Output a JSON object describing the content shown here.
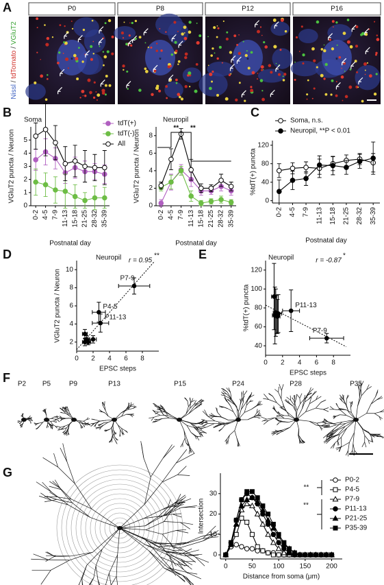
{
  "panels": [
    "A",
    "B",
    "C",
    "D",
    "E",
    "F",
    "G"
  ],
  "images": {
    "labels": [
      "P0",
      "P8",
      "P12",
      "P16"
    ],
    "asterisk": "*",
    "stain_labels": [
      {
        "text": "Nissl",
        "color": "#3b5fc0"
      },
      {
        "text": " / ",
        "color": "#333333"
      },
      {
        "text": "tdTomato",
        "color": "#d0302a"
      },
      {
        "text": " / ",
        "color": "#333333"
      },
      {
        "text": "VGluT2",
        "color": "#3aa335"
      }
    ]
  },
  "neurons": {
    "labels": [
      "P2",
      "P5",
      "P9",
      "P13",
      "P15",
      "P24",
      "P28",
      "P35"
    ]
  },
  "chart_data": [
    {
      "type": "line",
      "title": "Soma",
      "ylabel": "VGluT2 puncta / Neuron",
      "xlabel": "Postnatal day",
      "categories": [
        "0-2",
        "4-5",
        "7-9",
        "11-13",
        "15-18",
        "21-25",
        "28-32",
        "35-39"
      ],
      "ylim": [
        0,
        6
      ],
      "yticks": [
        0,
        1,
        2,
        3,
        4,
        5
      ],
      "legend": "upper right",
      "series": [
        {
          "name": "tdT(+)",
          "color": "#b05fc0",
          "marker": "circle",
          "filled": true,
          "values": [
            3.5,
            4.1,
            3.6,
            2.5,
            2.9,
            2.6,
            2.6,
            2.4
          ],
          "errors": [
            0.8,
            1.0,
            0.8,
            0.8,
            0.8,
            0.8,
            0.6,
            0.7
          ]
        },
        {
          "name": "tdT(-)",
          "color": "#6dbd45",
          "marker": "circle",
          "filled": true,
          "values": [
            1.8,
            1.6,
            1.2,
            1.1,
            0.7,
            0.4,
            0.6,
            0.6
          ],
          "errors": [
            1.0,
            0.9,
            1.0,
            1.3,
            0.9,
            0.6,
            0.9,
            0.8
          ]
        },
        {
          "name": "All",
          "color": "#000000",
          "marker": "circle",
          "filled": false,
          "values": [
            5.3,
            5.8,
            4.8,
            3.2,
            3.4,
            3.0,
            2.9,
            2.9
          ],
          "errors": [
            1.0,
            2.0,
            1.3,
            1.3,
            1.2,
            1.2,
            1.0,
            1.3
          ]
        }
      ]
    },
    {
      "type": "line",
      "title": "Neuropil",
      "ylabel": "VGluT2 puncta / Neuron",
      "xlabel": "Postnatal day",
      "categories": [
        "0-2",
        "4-5",
        "7-9",
        "11-13",
        "15-18",
        "21-25",
        "28-32",
        "35-39"
      ],
      "ylim": [
        0,
        9
      ],
      "yticks": [
        0,
        2,
        4,
        6,
        8
      ],
      "annotations": [
        "**",
        "**"
      ],
      "series": [
        {
          "color": "#b05fc0",
          "marker": "circle",
          "filled": true,
          "values": [
            0.3,
            2.7,
            4.1,
            3.0,
            1.7,
            1.7,
            2.2,
            1.7
          ],
          "errors": [
            0.4,
            0.9,
            0.6,
            0.8,
            0.5,
            0.4,
            0.5,
            0.5
          ]
        },
        {
          "color": "#6dbd45",
          "marker": "circle",
          "filled": true,
          "values": [
            2.1,
            2.7,
            4.0,
            1.1,
            0.3,
            0.5,
            0.7,
            0.4
          ],
          "errors": [
            0.4,
            0.8,
            0.5,
            0.6,
            0.3,
            0.3,
            0.4,
            0.3
          ]
        },
        {
          "color": "#000000",
          "marker": "circle",
          "filled": false,
          "values": [
            2.3,
            5.3,
            8.2,
            4.1,
            2.0,
            2.0,
            2.9,
            2.2
          ],
          "errors": [
            0.4,
            1.2,
            0.6,
            1.2,
            0.5,
            0.4,
            0.7,
            0.5
          ]
        }
      ]
    },
    {
      "type": "line",
      "ylabel": "%tdT(+) puncta",
      "xlabel": "Postnatal day",
      "categories": [
        "0-2",
        "4-5",
        "7-9",
        "11-13",
        "15-18",
        "21-25",
        "28-32",
        "35-39"
      ],
      "ylim": [
        -5,
        130
      ],
      "yticks": [
        0,
        40,
        80,
        120
      ],
      "legend": "top",
      "series": [
        {
          "name": "Soma, n.s.",
          "color": "#000000",
          "marker": "circle",
          "filled": false,
          "values": [
            65,
            70,
            72,
            70,
            80,
            87,
            90,
            82
          ],
          "errors": [
            15,
            12,
            12,
            20,
            15,
            12,
            12,
            20
          ]
        },
        {
          "name": "Neuropil, **P < 0.01",
          "color": "#000000",
          "marker": "circle",
          "filled": true,
          "values": [
            20,
            44,
            48,
            77,
            76,
            72,
            85,
            92
          ],
          "errors": [
            25,
            20,
            15,
            20,
            20,
            15,
            15,
            35
          ]
        }
      ]
    },
    {
      "type": "scatter",
      "title": "Neuropil",
      "annotations": [
        "r = 0.95",
        "**"
      ],
      "xlabel": "EPSC steps",
      "ylabel": "VGluT2 puncta / Neuron",
      "xlim": [
        0,
        10
      ],
      "xticks": [
        0,
        2,
        4,
        6,
        8
      ],
      "ylim": [
        1,
        11
      ],
      "yticks": [
        2,
        4,
        6,
        8,
        10
      ],
      "trendline": true,
      "x": [
        7.0,
        2.7,
        2.9,
        1.0,
        1.2,
        1.4,
        2.0,
        1.0
      ],
      "y": [
        8.2,
        5.3,
        4.1,
        2.9,
        2.3,
        2.0,
        2.3,
        2.0
      ],
      "xerr": [
        1.9,
        0.8,
        1.0,
        0.3,
        0.3,
        0.3,
        0.4,
        0.3
      ],
      "yerr": [
        0.9,
        1.1,
        1.0,
        0.5,
        0.4,
        0.3,
        0.4,
        0.4
      ],
      "point_labels": [
        "P7-9",
        "P4-5",
        "P11-13",
        null,
        null,
        null,
        null,
        null
      ]
    },
    {
      "type": "scatter",
      "title": "Neuropil",
      "annotations": [
        "r = -0.87",
        "*"
      ],
      "xlabel": "EPSC steps",
      "ylabel": "%tdT(+) puncta",
      "xlim": [
        0,
        10
      ],
      "xticks": [
        0,
        2,
        4,
        6,
        8
      ],
      "ylim": [
        30,
        130
      ],
      "yticks": [
        40,
        60,
        80,
        100,
        120
      ],
      "trendline": true,
      "x": [
        7.2,
        3.0,
        1.0,
        1.2,
        1.3,
        1.1,
        1.5,
        1.4
      ],
      "y": [
        48,
        77,
        92,
        75,
        73,
        72,
        74,
        71
      ],
      "xerr": [
        2.0,
        1.0,
        0.3,
        0.3,
        0.3,
        0.3,
        0.4,
        0.3
      ],
      "yerr": [
        5,
        22,
        35,
        25,
        20,
        30,
        20,
        18
      ],
      "point_labels": [
        "P7-9",
        "P11-13",
        null,
        null,
        null,
        null,
        null,
        null
      ]
    },
    {
      "type": "line",
      "xlabel": "Distance from soma (μm)",
      "ylabel": "Intersection",
      "xlim": [
        -10,
        220
      ],
      "xticks": [
        0,
        50,
        100,
        150,
        200
      ],
      "ylim": [
        -2,
        40
      ],
      "yticks": [
        0,
        10,
        20,
        30
      ],
      "legend": "right",
      "annotations": [
        "**",
        "**"
      ],
      "x": [
        0,
        10,
        20,
        30,
        40,
        50,
        60,
        70,
        80,
        90,
        100,
        110,
        120,
        130,
        140,
        150,
        160,
        170,
        180,
        190,
        200
      ],
      "series": [
        {
          "name": "P0-2",
          "color": "#000000",
          "marker": "circle",
          "filled": false,
          "values": [
            0,
            4,
            5,
            4,
            3,
            3,
            2,
            2,
            1,
            1,
            0,
            0,
            0,
            0,
            0,
            0,
            0,
            0,
            0,
            0,
            0
          ]
        },
        {
          "name": "P4-5",
          "color": "#000000",
          "marker": "square",
          "filled": false,
          "values": [
            0,
            5,
            10,
            18,
            16,
            10,
            4,
            2,
            1,
            0,
            0,
            0,
            0,
            0,
            0,
            0,
            0,
            0,
            0,
            0,
            0
          ]
        },
        {
          "name": "P7-9",
          "color": "#000000",
          "marker": "triangle",
          "filled": false,
          "values": [
            0,
            5,
            15,
            22,
            25,
            24,
            20,
            15,
            10,
            6,
            3,
            1,
            0,
            0,
            0,
            0,
            0,
            0,
            0,
            0,
            0
          ]
        },
        {
          "name": "P11-13",
          "color": "#000000",
          "marker": "circle",
          "filled": true,
          "values": [
            0,
            6,
            17,
            27,
            30,
            28,
            25,
            20,
            15,
            10,
            6,
            3,
            1,
            0,
            0,
            0,
            0,
            0,
            0,
            0,
            0
          ]
        },
        {
          "name": "P21-25",
          "color": "#000000",
          "marker": "triangle",
          "filled": true,
          "values": [
            0,
            5,
            15,
            24,
            27,
            28,
            26,
            22,
            17,
            13,
            9,
            5,
            3,
            1,
            0,
            0,
            0,
            0,
            0,
            0,
            0
          ]
        },
        {
          "name": "P35-39",
          "color": "#000000",
          "marker": "square",
          "filled": true,
          "values": [
            0,
            6,
            17,
            27,
            31,
            31,
            28,
            24,
            20,
            15,
            10,
            6,
            3,
            1,
            0,
            0,
            0,
            0,
            0,
            0,
            0
          ]
        }
      ]
    }
  ]
}
